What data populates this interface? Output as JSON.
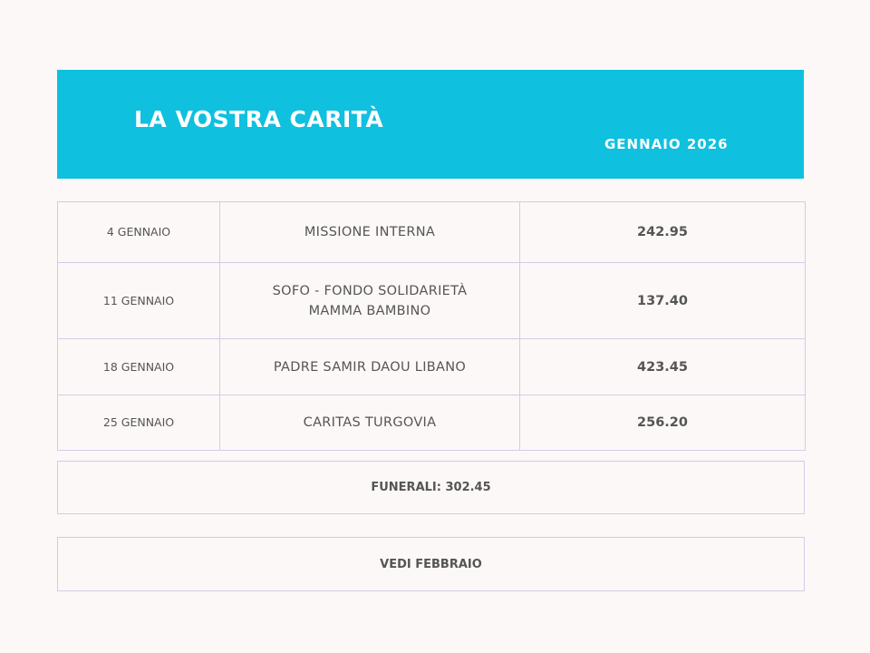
{
  "header": {
    "title": "LA VOSTRA CARITÀ",
    "subtitle": "GENNAIO 2026"
  },
  "table": {
    "rows": [
      [
        "4 GENNAIO",
        "MISSIONE INTERNA",
        "242.95"
      ],
      [
        "11 GENNAIO",
        "SOFO - FONDO SOLIDARIETÀ MAMMA BAMBINO",
        "137.40"
      ],
      [
        "18 GENNAIO",
        "PADRE SAMIR DAOU LIBANO",
        "423.45"
      ],
      [
        "25 GENNAIO",
        "CARITAS TURGOVIA",
        "256.20"
      ]
    ]
  },
  "footer": {
    "funerals": "FUNERALI: 302.45",
    "link": "VEDI FEBBRAIO"
  }
}
